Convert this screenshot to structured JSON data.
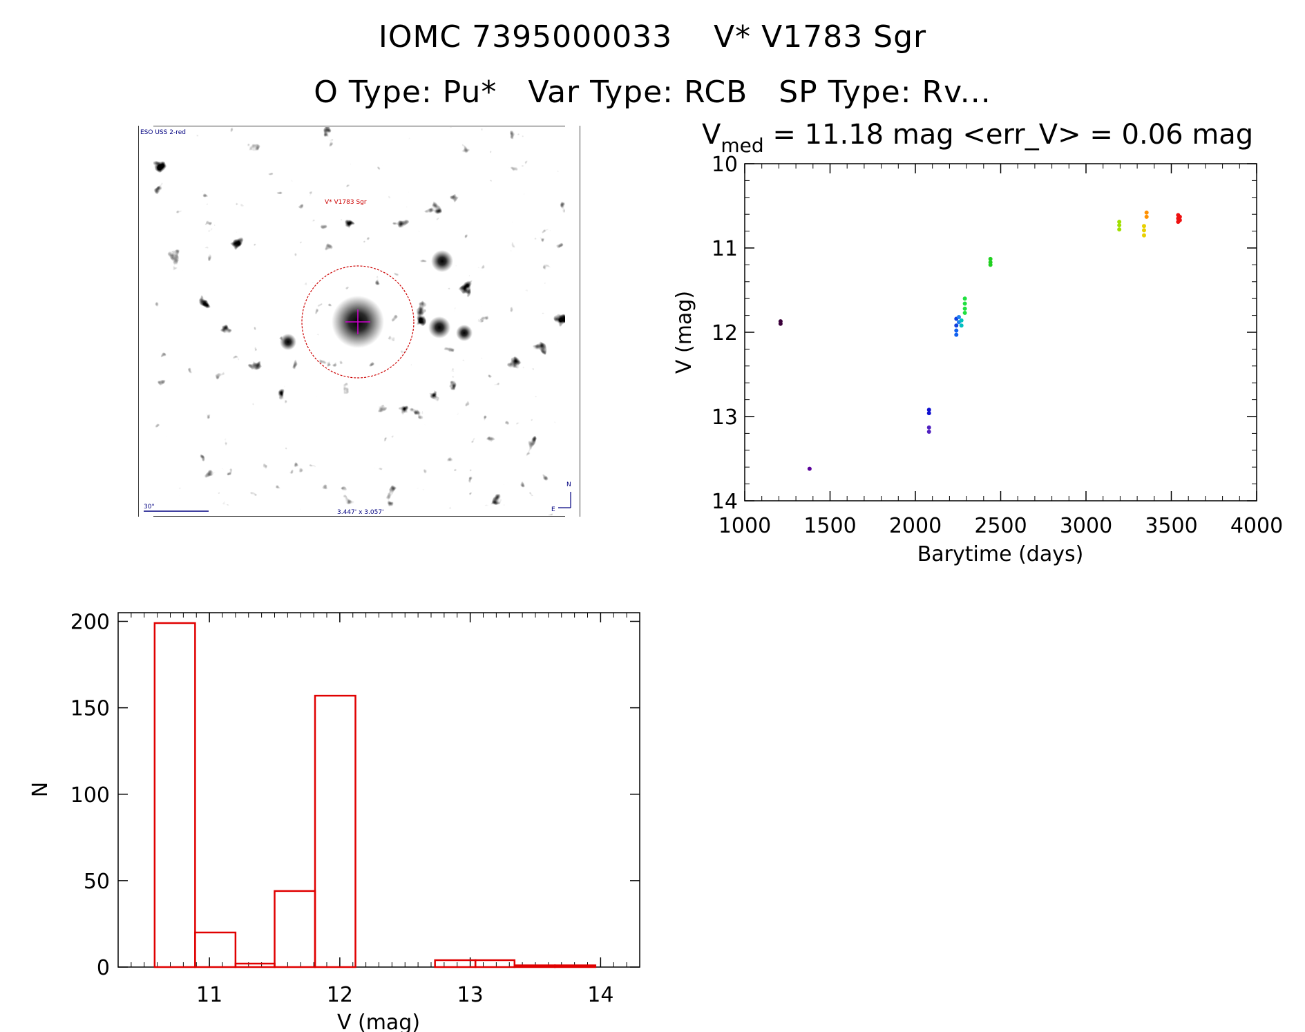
{
  "header": {
    "title_line1": "IOMC 7395000033    V* V1783 Sgr",
    "title_line2": "O Type: Pu*   Var Type: RCB   SP Type: Rv..."
  },
  "image_panel": {
    "survey_label": "ESO USS 2-red",
    "target_label": "V* V1783 Sgr",
    "scale_label": "30\"",
    "fov_label": "3.447' x 3.057'",
    "north_label": "N",
    "east_label": "E"
  },
  "chart_data": [
    {
      "type": "scatter",
      "title": "V_med = 11.18 mag <err_V> = 0.06 mag",
      "title_parts": {
        "v": "V",
        "sub": "med",
        "rest": " = 11.18 mag <err_V> = 0.06 mag"
      },
      "xlabel": "Barytime (days)",
      "ylabel": "V (mag)",
      "xlim": [
        1000,
        4000
      ],
      "ylim": [
        14,
        10
      ],
      "y_inverted": true,
      "xticks": [
        1000,
        1500,
        2000,
        2500,
        3000,
        3500,
        4000
      ],
      "yticks": [
        10,
        11,
        12,
        13,
        14
      ],
      "color_by_time": true,
      "points": [
        {
          "x": 1210,
          "y": 11.87,
          "color": "#3a003a"
        },
        {
          "x": 1210,
          "y": 11.9,
          "color": "#3a003a"
        },
        {
          "x": 1380,
          "y": 13.62,
          "color": "#5a009a"
        },
        {
          "x": 2080,
          "y": 12.92,
          "color": "#1010d0"
        },
        {
          "x": 2080,
          "y": 12.96,
          "color": "#1010d0"
        },
        {
          "x": 2080,
          "y": 13.13,
          "color": "#5020c0"
        },
        {
          "x": 2080,
          "y": 13.18,
          "color": "#5020c0"
        },
        {
          "x": 2240,
          "y": 11.84,
          "color": "#1040e0"
        },
        {
          "x": 2240,
          "y": 11.92,
          "color": "#1040e0"
        },
        {
          "x": 2240,
          "y": 11.98,
          "color": "#1060f0"
        },
        {
          "x": 2240,
          "y": 12.03,
          "color": "#1060f0"
        },
        {
          "x": 2255,
          "y": 11.82,
          "color": "#2080f0"
        },
        {
          "x": 2255,
          "y": 11.88,
          "color": "#2080f0"
        },
        {
          "x": 2270,
          "y": 11.86,
          "color": "#00c0c0"
        },
        {
          "x": 2270,
          "y": 11.92,
          "color": "#00c0c0"
        },
        {
          "x": 2290,
          "y": 11.6,
          "color": "#20e040"
        },
        {
          "x": 2290,
          "y": 11.66,
          "color": "#20e040"
        },
        {
          "x": 2290,
          "y": 11.72,
          "color": "#20e040"
        },
        {
          "x": 2290,
          "y": 11.77,
          "color": "#20e040"
        },
        {
          "x": 2440,
          "y": 11.13,
          "color": "#20d020"
        },
        {
          "x": 2440,
          "y": 11.17,
          "color": "#20d020"
        },
        {
          "x": 2440,
          "y": 11.2,
          "color": "#20d020"
        },
        {
          "x": 3195,
          "y": 10.69,
          "color": "#a0e000"
        },
        {
          "x": 3195,
          "y": 10.73,
          "color": "#a0e000"
        },
        {
          "x": 3195,
          "y": 10.78,
          "color": "#a0e000"
        },
        {
          "x": 3340,
          "y": 10.74,
          "color": "#e8d000"
        },
        {
          "x": 3340,
          "y": 10.79,
          "color": "#e8d000"
        },
        {
          "x": 3340,
          "y": 10.85,
          "color": "#e8d000"
        },
        {
          "x": 3355,
          "y": 10.58,
          "color": "#ff9000"
        },
        {
          "x": 3355,
          "y": 10.63,
          "color": "#ff9000"
        },
        {
          "x": 3540,
          "y": 10.61,
          "color": "#ee1010"
        },
        {
          "x": 3540,
          "y": 10.65,
          "color": "#ee1010"
        },
        {
          "x": 3540,
          "y": 10.69,
          "color": "#ee1010"
        },
        {
          "x": 3550,
          "y": 10.63,
          "color": "#ee1010"
        },
        {
          "x": 3550,
          "y": 10.67,
          "color": "#ee1010"
        }
      ]
    },
    {
      "type": "bar",
      "subtype": "histogram",
      "title": "",
      "xlabel": "V (mag)",
      "ylabel": "N",
      "xlim": [
        10.3,
        14.3
      ],
      "ylim": [
        0,
        205
      ],
      "xticks": [
        11,
        12,
        13,
        14
      ],
      "yticks": [
        0,
        50,
        100,
        150,
        200
      ],
      "bar_color": "#e00000",
      "bins": [
        {
          "left": 10.58,
          "right": 10.89,
          "count": 199
        },
        {
          "left": 10.89,
          "right": 11.2,
          "count": 20
        },
        {
          "left": 11.2,
          "right": 11.5,
          "count": 2
        },
        {
          "left": 11.5,
          "right": 11.81,
          "count": 44
        },
        {
          "left": 11.81,
          "right": 12.12,
          "count": 157
        },
        {
          "left": 12.12,
          "right": 12.42,
          "count": 0
        },
        {
          "left": 12.42,
          "right": 12.73,
          "count": 0
        },
        {
          "left": 12.73,
          "right": 13.04,
          "count": 4
        },
        {
          "left": 13.04,
          "right": 13.34,
          "count": 4
        },
        {
          "left": 13.34,
          "right": 13.65,
          "count": 1
        },
        {
          "left": 13.65,
          "right": 13.96,
          "count": 1
        }
      ]
    }
  ]
}
